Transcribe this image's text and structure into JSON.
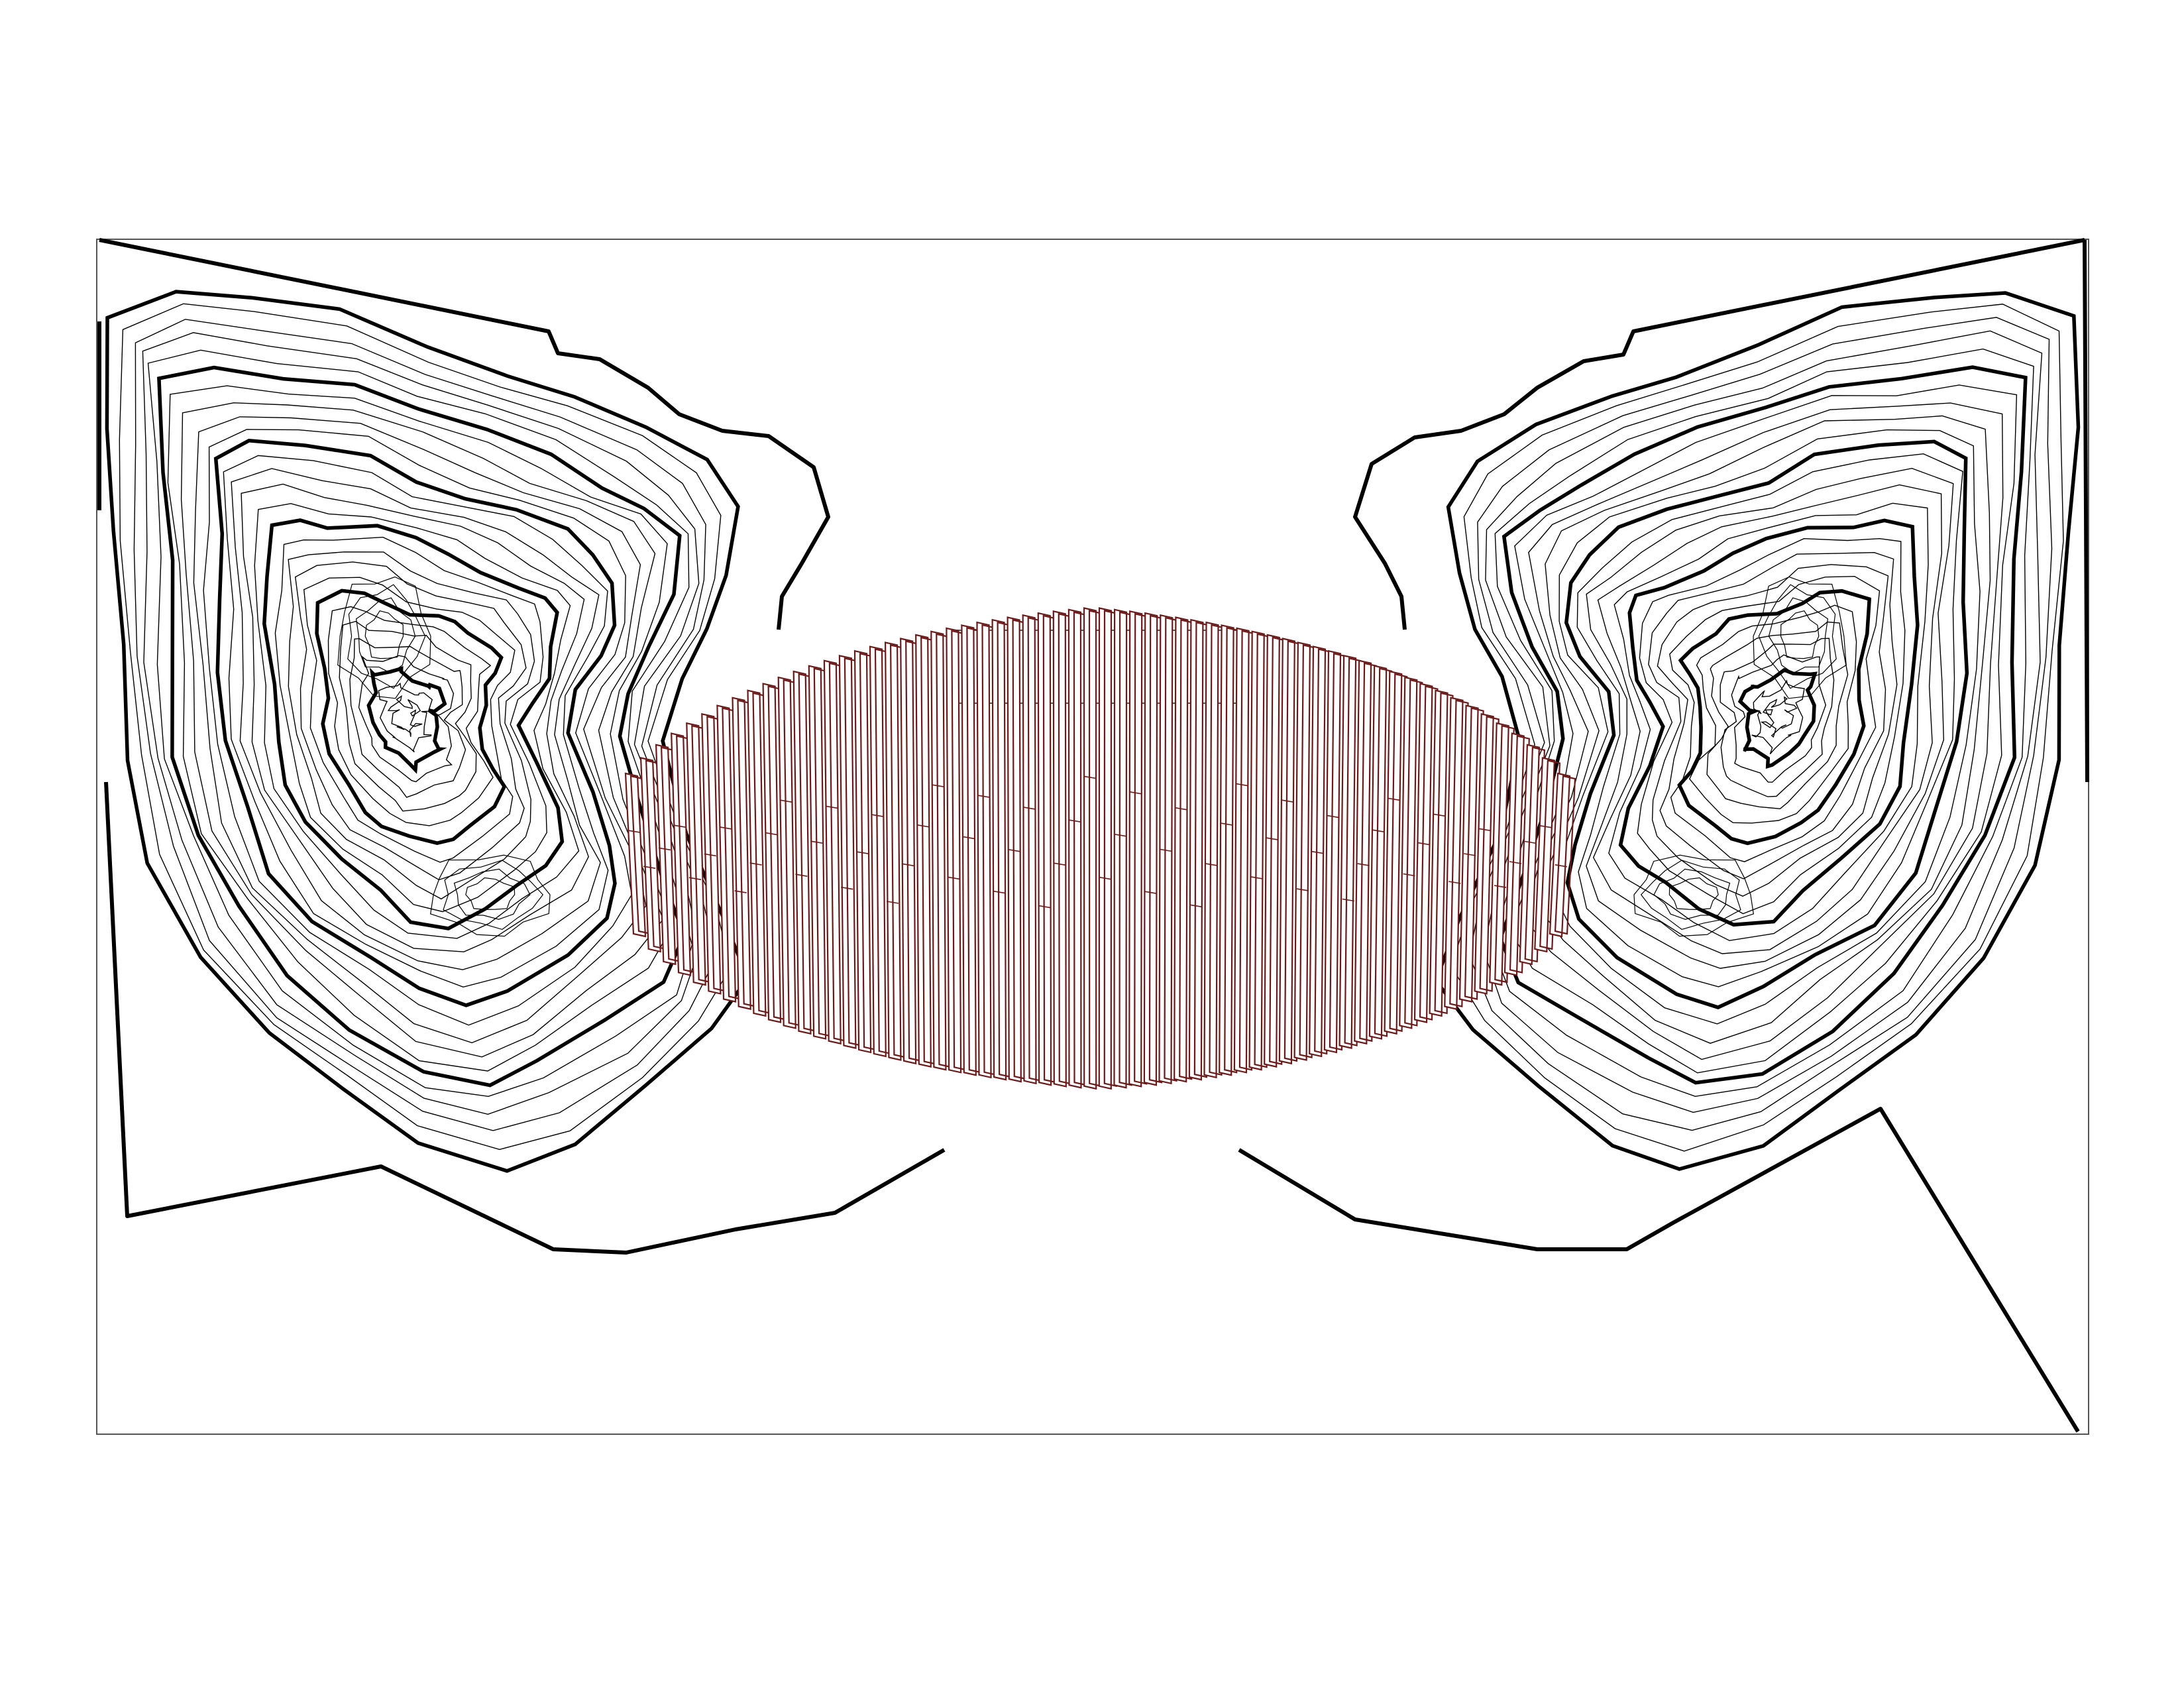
{
  "drawing": {
    "line_color": "#000000",
    "slab_color": "#6b1a1a",
    "paper_color": "#ffffff",
    "contour_interval_steps": 5,
    "lobe_count": 2,
    "slab_count": 62
  }
}
